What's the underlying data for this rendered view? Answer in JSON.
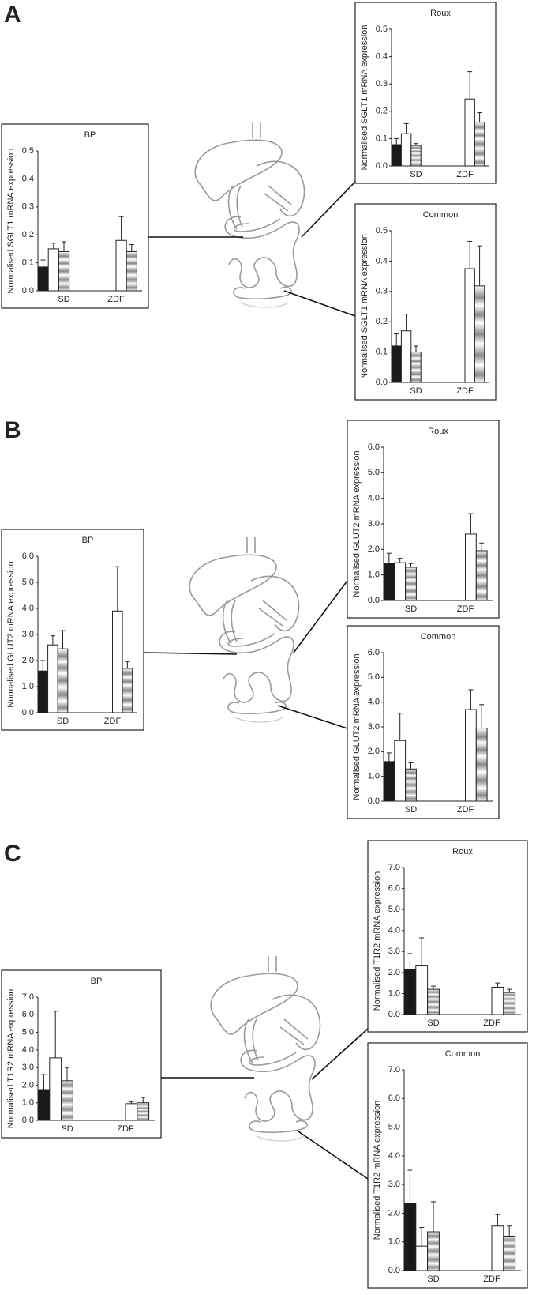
{
  "panel_labels": [
    "A",
    "B",
    "C"
  ],
  "chart_data": [
    {
      "type": "bar",
      "title": "BP",
      "y_label": "Normalised SGLT1 mRNA expression",
      "categories": [
        "SD",
        "ZDF"
      ],
      "series": [
        {
          "color": "#1a1a1a",
          "values": [
            0.085,
            null
          ],
          "errors": [
            0.025,
            null
          ]
        },
        {
          "color": "#ffffff",
          "values": [
            0.15,
            0.18
          ],
          "errors": [
            0.02,
            0.085
          ]
        },
        {
          "color": "#8a8a8a",
          "values": [
            0.14,
            0.14
          ],
          "errors": [
            0.035,
            0.025
          ]
        }
      ],
      "ylim": [
        0,
        0.5
      ],
      "yticks": [
        {
          "value": 0,
          "label": "0.0"
        },
        0.1,
        0.2,
        0.3,
        0.4,
        0.5
      ]
    },
    {
      "type": "bar",
      "title": "Roux",
      "y_label": "Normalised SGLT1 mRNA expression",
      "categories": [
        "SD",
        "ZDF"
      ],
      "series": [
        {
          "color": "#1a1a1a",
          "values": [
            0.078,
            null
          ],
          "errors": [
            0.022,
            null
          ]
        },
        {
          "color": "#ffffff",
          "values": [
            0.118,
            0.245
          ],
          "errors": [
            0.037,
            0.1
          ]
        },
        {
          "color": "#8a8a8a",
          "values": [
            0.075,
            0.16
          ],
          "errors": [
            0.007,
            0.035
          ]
        }
      ],
      "ylim": [
        0,
        0.5
      ],
      "yticks": [
        {
          "value": 0,
          "label": "0.0"
        },
        0.1,
        0.2,
        0.3,
        0.4,
        0.5
      ]
    },
    {
      "type": "bar",
      "title": "Common",
      "y_label": "Normalised SGLT1 mRNA expression",
      "categories": [
        "SD",
        "ZDF"
      ],
      "series": [
        {
          "color": "#1a1a1a",
          "values": [
            0.12,
            null
          ],
          "errors": [
            0.04,
            null
          ]
        },
        {
          "color": "#ffffff",
          "values": [
            0.17,
            0.375
          ],
          "errors": [
            0.055,
            0.09
          ]
        },
        {
          "color": "#8a8a8a",
          "values": [
            0.1,
            0.318
          ],
          "errors": [
            0.02,
            0.132
          ]
        }
      ],
      "ylim": [
        0,
        0.5
      ],
      "yticks": [
        {
          "value": 0,
          "label": "0.0"
        },
        0.1,
        0.2,
        0.3,
        0.4,
        0.5
      ]
    },
    {
      "type": "bar",
      "title": "BP",
      "y_label": "Normalised GLUT2 mRNA expression",
      "categories": [
        "SD",
        "ZDF"
      ],
      "series": [
        {
          "color": "#1a1a1a",
          "values": [
            1.6,
            null
          ],
          "errors": [
            0.4,
            null
          ]
        },
        {
          "color": "#ffffff",
          "values": [
            2.6,
            3.9
          ],
          "errors": [
            0.35,
            1.7
          ]
        },
        {
          "color": "#8a8a8a",
          "values": [
            2.45,
            1.7
          ],
          "errors": [
            0.7,
            0.25
          ]
        }
      ],
      "ylim": [
        0,
        6
      ],
      "yticks": [
        {
          "value": 0,
          "label": "0.0"
        },
        {
          "value": 1,
          "label": "1.0"
        },
        {
          "value": 2,
          "label": "2.0"
        },
        {
          "value": 3,
          "label": "3.0"
        },
        {
          "value": 4,
          "label": "4.0"
        },
        {
          "value": 5,
          "label": "5.0"
        },
        {
          "value": 6,
          "label": "6.0"
        }
      ]
    },
    {
      "type": "bar",
      "title": "Roux",
      "y_label": "Normalised GLUT2 mRNA expression",
      "categories": [
        "SD",
        "ZDF"
      ],
      "series": [
        {
          "color": "#1a1a1a",
          "values": [
            1.45,
            null
          ],
          "errors": [
            0.4,
            null
          ]
        },
        {
          "color": "#ffffff",
          "values": [
            1.48,
            2.6
          ],
          "errors": [
            0.17,
            0.8
          ]
        },
        {
          "color": "#8a8a8a",
          "values": [
            1.3,
            1.95
          ],
          "errors": [
            0.15,
            0.3
          ]
        }
      ],
      "ylim": [
        0,
        6
      ],
      "yticks": [
        {
          "value": 0,
          "label": "0.0"
        },
        {
          "value": 1,
          "label": "1.0"
        },
        {
          "value": 2,
          "label": "2.0"
        },
        {
          "value": 3,
          "label": "3.0"
        },
        {
          "value": 4,
          "label": "4.0"
        },
        {
          "value": 5,
          "label": "5.0"
        },
        {
          "value": 6,
          "label": "6.0"
        }
      ]
    },
    {
      "type": "bar",
      "title": "Common",
      "y_label": "Normalised GLUT2 mRNA expression",
      "categories": [
        "SD",
        "ZDF"
      ],
      "series": [
        {
          "color": "#1a1a1a",
          "values": [
            1.6,
            null
          ],
          "errors": [
            0.35,
            null
          ]
        },
        {
          "color": "#ffffff",
          "values": [
            2.45,
            3.7
          ],
          "errors": [
            1.1,
            0.8
          ]
        },
        {
          "color": "#8a8a8a",
          "values": [
            1.3,
            2.95
          ],
          "errors": [
            0.25,
            0.95
          ]
        }
      ],
      "ylim": [
        0,
        6
      ],
      "yticks": [
        {
          "value": 0,
          "label": "0.0"
        },
        {
          "value": 1,
          "label": "1.0"
        },
        {
          "value": 2,
          "label": "2.0"
        },
        {
          "value": 3,
          "label": "3.0"
        },
        {
          "value": 4,
          "label": "4.0"
        },
        {
          "value": 5,
          "label": "5.0"
        },
        {
          "value": 6,
          "label": "6.0"
        }
      ]
    },
    {
      "type": "bar",
      "title": "BP",
      "y_label": "Normalised T1R2 mRNA expression",
      "categories": [
        "SD",
        "ZDF"
      ],
      "series": [
        {
          "color": "#1a1a1a",
          "values": [
            1.75,
            null
          ],
          "errors": [
            0.85,
            null
          ]
        },
        {
          "color": "#ffffff",
          "values": [
            3.55,
            0.95
          ],
          "errors": [
            2.65,
            0.1
          ]
        },
        {
          "color": "#8a8a8a",
          "values": [
            2.25,
            1.0
          ],
          "errors": [
            0.75,
            0.3
          ]
        }
      ],
      "ylim": [
        0,
        7
      ],
      "yticks": [
        {
          "value": 0,
          "label": "0.0"
        },
        {
          "value": 1,
          "label": "1.0"
        },
        {
          "value": 2,
          "label": "2.0"
        },
        {
          "value": 3,
          "label": "3.0"
        },
        {
          "value": 4,
          "label": "4.0"
        },
        {
          "value": 5,
          "label": "5.0"
        },
        {
          "value": 6,
          "label": "6.0"
        },
        {
          "value": 7,
          "label": "7.0"
        }
      ]
    },
    {
      "type": "bar",
      "title": "Roux",
      "y_label": "Normalised T1R2 mRNA expression",
      "categories": [
        "SD",
        "ZDF"
      ],
      "series": [
        {
          "color": "#1a1a1a",
          "values": [
            2.15,
            null
          ],
          "errors": [
            0.75,
            null
          ]
        },
        {
          "color": "#ffffff",
          "values": [
            2.35,
            1.3
          ],
          "errors": [
            1.3,
            0.2
          ]
        },
        {
          "color": "#8a8a8a",
          "values": [
            1.2,
            1.05
          ],
          "errors": [
            0.15,
            0.15
          ]
        }
      ],
      "ylim": [
        0,
        7
      ],
      "yticks": [
        {
          "value": 0,
          "label": "0.0"
        },
        {
          "value": 1,
          "label": "1.0"
        },
        {
          "value": 2,
          "label": "2.0"
        },
        {
          "value": 3,
          "label": "3.0"
        },
        {
          "value": 4,
          "label": "4.0"
        },
        {
          "value": 5,
          "label": "5.0"
        },
        {
          "value": 6,
          "label": "6.0"
        },
        {
          "value": 7,
          "label": "7.0"
        }
      ]
    },
    {
      "type": "bar",
      "title": "Common",
      "y_label": "Normalised T1R2 mRNA expression",
      "categories": [
        "SD",
        "ZDF"
      ],
      "series": [
        {
          "color": "#1a1a1a",
          "values": [
            2.35,
            null
          ],
          "errors": [
            1.15,
            null
          ]
        },
        {
          "color": "#ffffff",
          "values": [
            0.85,
            1.55
          ],
          "errors": [
            0.65,
            0.4
          ]
        },
        {
          "color": "#8a8a8a",
          "values": [
            1.35,
            1.2
          ],
          "errors": [
            1.05,
            0.35
          ]
        }
      ],
      "ylim": [
        0,
        7
      ],
      "yticks": [
        {
          "value": 0,
          "label": "0.0"
        },
        {
          "value": 1,
          "label": "1.0"
        },
        {
          "value": 2,
          "label": "2.0"
        },
        {
          "value": 3,
          "label": "3.0"
        },
        {
          "value": 4,
          "label": "4.0"
        },
        {
          "value": 5,
          "label": "5.0"
        },
        {
          "value": 6,
          "label": "6.0"
        },
        {
          "value": 7,
          "label": "7.0"
        }
      ]
    }
  ]
}
